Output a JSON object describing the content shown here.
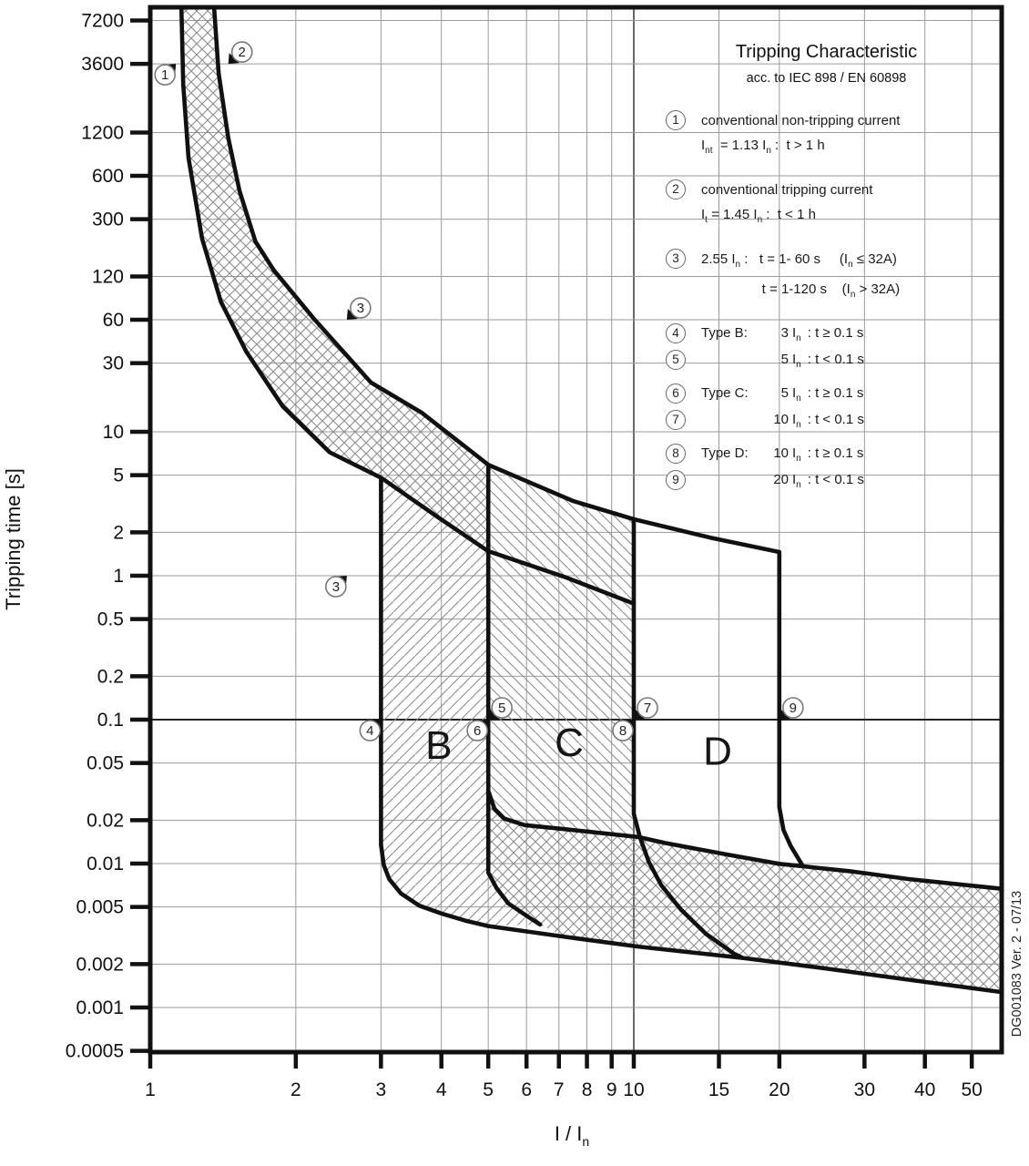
{
  "legend": {
    "title": "Tripping Characteristic",
    "subtitle": "acc. to IEC 898 / EN 60898",
    "items_text": [
      {
        "num": "1",
        "lines": [
          [
            {
              "t": "conventional non-tripping current"
            }
          ],
          [
            {
              "t": "I"
            },
            {
              "s": "nt"
            },
            {
              "t": "  = 1.13 I"
            },
            {
              "s": "n"
            },
            {
              "t": " :  t > 1 h"
            }
          ]
        ]
      },
      {
        "num": "2",
        "lines": [
          [
            {
              "t": "conventional tripping current"
            }
          ],
          [
            {
              "t": "I"
            },
            {
              "s": "t"
            },
            {
              "t": " = 1.45 I"
            },
            {
              "s": "n"
            },
            {
              "t": " :  t < 1 h"
            }
          ]
        ]
      },
      {
        "num": "3",
        "lines": [
          [
            {
              "t": "2.55 I"
            },
            {
              "s": "n"
            },
            {
              "t": " :   t = 1- 60 s     (I"
            },
            {
              "s": "n"
            },
            {
              "t": " ≤ 32A)"
            }
          ],
          [
            {
              "t": "                t = 1-120 s    (I"
            },
            {
              "s": "n"
            },
            {
              "t": " > 32A)"
            }
          ]
        ]
      }
    ],
    "type_items": [
      {
        "num": "4",
        "label": "Type B:",
        "qty": "3",
        "unit": "I",
        "unit_sub": "n",
        "cond": ": t ≥ 0.1 s",
        "group_start": true
      },
      {
        "num": "5",
        "label": "",
        "qty": "5",
        "unit": "I",
        "unit_sub": "n",
        "cond": ": t < 0.1 s",
        "group_start": false
      },
      {
        "num": "6",
        "label": "Type C:",
        "qty": "5",
        "unit": "I",
        "unit_sub": "n",
        "cond": ": t ≥ 0.1 s",
        "group_start": true
      },
      {
        "num": "7",
        "label": "",
        "qty": "10",
        "unit": "I",
        "unit_sub": "n",
        "cond": ": t < 0.1 s",
        "group_start": false
      },
      {
        "num": "8",
        "label": "Type D:",
        "qty": "10",
        "unit": "I",
        "unit_sub": "n",
        "cond": ": t ≥ 0.1 s",
        "group_start": true
      },
      {
        "num": "9",
        "label": "",
        "qty": "20",
        "unit": "I",
        "unit_sub": "n",
        "cond": ": t < 0.1 s",
        "group_start": false
      }
    ]
  },
  "axes": {
    "y_label": "Tripping time [s]",
    "x_label_segments": [
      {
        "t": "I / I"
      },
      {
        "s": "n"
      }
    ],
    "y_ticks": [
      "7200",
      "3600",
      "1200",
      "600",
      "300",
      "120",
      "60",
      "30",
      "10",
      "5",
      "2",
      "1",
      "0.5",
      "0.2",
      "0.1",
      "0.05",
      "0.02",
      "0.01",
      "0.005",
      "0.002",
      "0.001",
      "0.0005"
    ],
    "x_ticks": [
      "1",
      "2",
      "3",
      "4",
      "5",
      "6",
      "7",
      "8",
      "9",
      "10",
      "15",
      "20",
      "30",
      "40",
      "50"
    ]
  },
  "watermark": "DG001083 Ver. 2 - 07/13",
  "colors": {
    "curve": "#111111",
    "grid": "#9a9a9a",
    "grid_emphasis_h": "#222222",
    "grid_emphasis_v": "#444444",
    "hatch": "#8c8c8c",
    "text": "#111111"
  },
  "chart_data": {
    "type": "line",
    "title": "Tripping Characteristic",
    "subtitle": "acc. to IEC 898 / EN 60898",
    "xlabel": "I / In",
    "ylabel": "Tripping time [s]",
    "x_scale": "log",
    "y_scale": "log",
    "xlim": [
      1,
      57.7
    ],
    "ylim": [
      0.00048,
      8900
    ],
    "x_ticks": [
      1,
      2,
      3,
      4,
      5,
      6,
      7,
      8,
      9,
      10,
      15,
      20,
      30,
      40,
      50
    ],
    "y_ticks": [
      7200,
      3600,
      1200,
      600,
      300,
      120,
      60,
      30,
      10,
      5,
      2,
      1,
      0.5,
      0.2,
      0.1,
      0.05,
      0.02,
      0.01,
      0.005,
      0.002,
      0.001,
      0.0005
    ],
    "grid": true,
    "legend_position": "upper right",
    "series": [
      {
        "name": "left_thermal",
        "desc": "conventional non-tripping boundary (1.13 In)",
        "points": [
          [
            1.16,
            8900
          ],
          [
            1.17,
            2600
          ],
          [
            1.2,
            800
          ],
          [
            1.28,
            220
          ],
          [
            1.4,
            80
          ],
          [
            1.58,
            36
          ],
          [
            1.88,
            15
          ],
          [
            2.35,
            7.2
          ],
          [
            3.0,
            4.8
          ],
          [
            3.9,
            2.6
          ],
          [
            5.0,
            1.48
          ],
          [
            7.2,
            0.98
          ],
          [
            10,
            0.64
          ]
        ]
      },
      {
        "name": "right_thermal",
        "desc": "conventional tripping boundary (1.45 In) continuing as D upper limit",
        "points": [
          [
            1.355,
            8900
          ],
          [
            1.385,
            3100
          ],
          [
            1.45,
            1100
          ],
          [
            1.53,
            470
          ],
          [
            1.65,
            210
          ],
          [
            1.8,
            133
          ],
          [
            2.18,
            61
          ],
          [
            2.86,
            22
          ],
          [
            3.65,
            13.5
          ],
          [
            5.0,
            5.9
          ],
          [
            7.5,
            3.3
          ],
          [
            10,
            2.47
          ],
          [
            14.4,
            1.84
          ],
          [
            20,
            1.46
          ]
        ]
      },
      {
        "name": "b3_curve",
        "desc": "3 In magnetic limit (Type B) joining common lower opening boundary",
        "points": [
          [
            3,
            4.8
          ],
          [
            3,
            0.0135
          ],
          [
            3.04,
            0.0098
          ],
          [
            3.12,
            0.0078
          ],
          [
            3.3,
            0.0062
          ],
          [
            3.6,
            0.0051
          ],
          [
            4.0,
            0.0045
          ],
          [
            4.5,
            0.004
          ],
          [
            5.0,
            0.00368
          ],
          [
            7.2,
            0.0031
          ],
          [
            10.2,
            0.00265
          ],
          [
            16.8,
            0.00221
          ],
          [
            24,
            0.0019
          ],
          [
            37,
            0.00156
          ],
          [
            57.7,
            0.00128
          ]
        ]
      },
      {
        "name": "b5_vertical",
        "desc": "5 In boundary (B max / C min), lower fork",
        "points": [
          [
            5,
            5.9
          ],
          [
            5,
            0.00866
          ],
          [
            5.2,
            0.00677
          ],
          [
            5.5,
            0.0053
          ],
          [
            5.95,
            0.00442
          ],
          [
            6.4,
            0.00377
          ]
        ]
      },
      {
        "name": "b5_top_edge",
        "desc": "upper edge of instantaneous opening band",
        "points": [
          [
            5,
            0.0321
          ],
          [
            5.15,
            0.024
          ],
          [
            5.4,
            0.0205
          ],
          [
            5.95,
            0.0185
          ],
          [
            7.0,
            0.0175
          ],
          [
            10.2,
            0.0153
          ],
          [
            11.6,
            0.0139
          ],
          [
            15.7,
            0.0115
          ],
          [
            20,
            0.00995
          ],
          [
            28,
            0.00885
          ],
          [
            37,
            0.0078
          ],
          [
            57.7,
            0.00668
          ]
        ]
      },
      {
        "name": "c10_curve",
        "desc": "10 In boundary (C max / D min)",
        "points": [
          [
            10,
            2.47
          ],
          [
            10,
            0.0222
          ],
          [
            10.3,
            0.0152
          ],
          [
            10.75,
            0.0102
          ],
          [
            11.4,
            0.00707
          ],
          [
            12.5,
            0.00481
          ],
          [
            14.1,
            0.00325
          ],
          [
            16.1,
            0.00237
          ],
          [
            16.8,
            0.00221
          ]
        ]
      },
      {
        "name": "d20_curve",
        "desc": "20 In boundary (D max)",
        "points": [
          [
            20,
            1.46
          ],
          [
            20,
            0.0247
          ],
          [
            20.4,
            0.0171
          ],
          [
            21.1,
            0.0133
          ],
          [
            22.3,
            0.00978
          ]
        ]
      }
    ],
    "bands": [
      {
        "name": "thermal-tripping-band",
        "fill": "crosshatch",
        "between": [
          "left_thermal",
          "right_thermal"
        ]
      },
      {
        "name": "type-B-magnetic-range",
        "range": [
          3,
          5
        ],
        "fill": "diagonal-up"
      },
      {
        "name": "type-C-magnetic-range",
        "range": [
          5,
          10
        ],
        "fill": "diagonal-down"
      },
      {
        "name": "type-D-magnetic-range",
        "range": [
          10,
          20
        ],
        "fill": "none"
      },
      {
        "name": "instantaneous-opening-band",
        "fill": "crosshatch",
        "between": [
          "b5_top_edge",
          "b3_curve"
        ]
      }
    ],
    "regions": [
      {
        "label": "B",
        "v": 3.95,
        "t": 0.066
      },
      {
        "label": "C",
        "v": 7.35,
        "t": 0.069
      },
      {
        "label": "D",
        "v": 14.9,
        "t": 0.06
      }
    ],
    "markers": [
      {
        "n": "1",
        "v": 1.13,
        "t": 3600,
        "place": "ll"
      },
      {
        "n": "2",
        "v": 1.45,
        "t": 3600,
        "place": "ur"
      },
      {
        "n": "3",
        "v": 2.55,
        "t": 60,
        "place": "ur"
      },
      {
        "n": "3",
        "v": 2.55,
        "t": 1,
        "place": "ll"
      },
      {
        "n": "4",
        "v": 3,
        "t": 0.1,
        "place": "ll"
      },
      {
        "n": "5",
        "v": 5,
        "t": 0.1,
        "place": "ur"
      },
      {
        "n": "6",
        "v": 5,
        "t": 0.1,
        "place": "ll"
      },
      {
        "n": "7",
        "v": 10,
        "t": 0.1,
        "place": "ur"
      },
      {
        "n": "8",
        "v": 10,
        "t": 0.1,
        "place": "ll"
      },
      {
        "n": "9",
        "v": 20,
        "t": 0.1,
        "place": "ur"
      }
    ],
    "emphasized_gridlines": {
      "x": [
        10
      ],
      "y": [
        0.1
      ]
    }
  }
}
